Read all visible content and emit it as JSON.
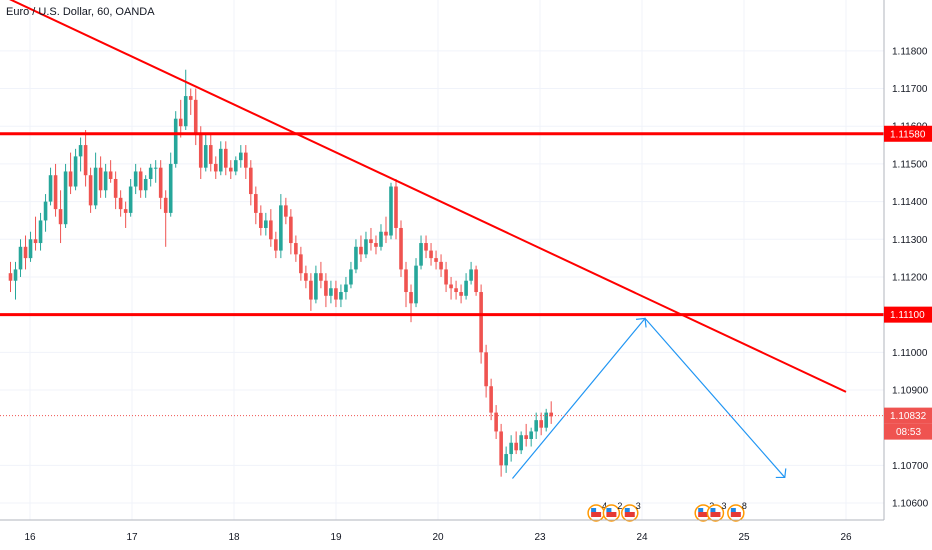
{
  "header": {
    "symbol_title": "Euro / U.S. Dollar, 60, OANDA"
  },
  "colors": {
    "background": "#ffffff",
    "grid": "#f0f3fa",
    "up": "#26a69a",
    "down": "#ef5350",
    "level_line": "#ff0000",
    "projection": "#2196f3",
    "axis_text": "#131722",
    "current_price_line": "#ef5350"
  },
  "chart_data": {
    "type": "candlestick",
    "symbol": "EURUSD",
    "timeframe": "60",
    "source": "OANDA",
    "title": "Euro / U.S. Dollar, 60, OANDA",
    "x_ticks": [
      "16",
      "17",
      "18",
      "19",
      "20",
      "23",
      "24",
      "25",
      "26"
    ],
    "x_tick_index": [
      0,
      1,
      2,
      3,
      4,
      5,
      6,
      7,
      8
    ],
    "y_ticks": [
      1.1066,
      1.1068,
      1.107,
      1.1082,
      1.1084,
      1.1086,
      1.1088,
      1.109,
      1.11,
      1.1104,
      1.1106,
      1.1108,
      1.1112,
      1.1114,
      1.1116,
      1.1118,
      1.113,
      1.114,
      1.115,
      1.116,
      1.117,
      1.118
    ],
    "y_tick_labels_shown": [
      "1.11800",
      "1.11700",
      "1.11600",
      "1.11500",
      "1.11400",
      "1.11300",
      "1.11200",
      "1.11000",
      "1.10900",
      "1.10700",
      "1.10600"
    ],
    "ylim": [
      1.10555,
      1.11935
    ],
    "horizontal_levels": [
      {
        "price": 1.1158,
        "label": "1.11580",
        "color": "#ff0000"
      },
      {
        "price": 1.111,
        "label": "1.11100",
        "color": "#ff0000"
      }
    ],
    "trendline": {
      "from": {
        "x": -0.3,
        "y": 1.1195
      },
      "to": {
        "x": 8.0,
        "y": 1.10895
      }
    },
    "projection_path": [
      {
        "x": 4.73,
        "y": 1.10665
      },
      {
        "x": 6.03,
        "y": 1.1109
      },
      {
        "x": 7.4,
        "y": 1.10668
      }
    ],
    "current_price": {
      "price": 1.10832,
      "label": "1.10832",
      "countdown": "08:53"
    },
    "events": [
      {
        "x": 5.55,
        "label": "4"
      },
      {
        "x": 5.7,
        "label": "2"
      },
      {
        "x": 5.88,
        "label": "3"
      },
      {
        "x": 6.6,
        "label": "2"
      },
      {
        "x": 6.72,
        "label": "3"
      },
      {
        "x": 6.92,
        "label": "8"
      }
    ],
    "candles": [
      [
        1.1121,
        1.1124,
        1.1116,
        1.1119
      ],
      [
        1.1119,
        1.1124,
        1.1114,
        1.1122
      ],
      [
        1.1122,
        1.113,
        1.112,
        1.1128
      ],
      [
        1.1128,
        1.1131,
        1.1122,
        1.1125
      ],
      [
        1.1125,
        1.1132,
        1.1124,
        1.113
      ],
      [
        1.113,
        1.1136,
        1.1127,
        1.1129
      ],
      [
        1.1129,
        1.1137,
        1.1127,
        1.1135
      ],
      [
        1.1135,
        1.1142,
        1.1132,
        1.114
      ],
      [
        1.114,
        1.1149,
        1.1139,
        1.1147
      ],
      [
        1.1147,
        1.115,
        1.1136,
        1.1138
      ],
      [
        1.1138,
        1.1143,
        1.1129,
        1.1134
      ],
      [
        1.1134,
        1.115,
        1.1133,
        1.1148
      ],
      [
        1.1148,
        1.1153,
        1.1142,
        1.1144
      ],
      [
        1.1144,
        1.1154,
        1.1143,
        1.1152
      ],
      [
        1.1152,
        1.1157,
        1.1148,
        1.1155
      ],
      [
        1.1155,
        1.1159,
        1.1144,
        1.1147
      ],
      [
        1.1147,
        1.1149,
        1.1137,
        1.1139
      ],
      [
        1.1139,
        1.1153,
        1.1138,
        1.1149
      ],
      [
        1.1149,
        1.1152,
        1.1141,
        1.1143
      ],
      [
        1.1143,
        1.115,
        1.1141,
        1.1148
      ],
      [
        1.1148,
        1.1151,
        1.1145,
        1.1146
      ],
      [
        1.1146,
        1.1148,
        1.1138,
        1.1141
      ],
      [
        1.1141,
        1.1143,
        1.1136,
        1.1138
      ],
      [
        1.1138,
        1.114,
        1.1133,
        1.1137
      ],
      [
        1.1137,
        1.1146,
        1.1136,
        1.1144
      ],
      [
        1.1144,
        1.115,
        1.1142,
        1.1148
      ],
      [
        1.1148,
        1.1149,
        1.1141,
        1.1143
      ],
      [
        1.1143,
        1.1147,
        1.1141,
        1.1146
      ],
      [
        1.1146,
        1.115,
        1.1144,
        1.1149
      ],
      [
        1.1149,
        1.1151,
        1.1145,
        1.1149
      ],
      [
        1.1149,
        1.1151,
        1.1138,
        1.1141
      ],
      [
        1.1141,
        1.1143,
        1.1128,
        1.1137
      ],
      [
        1.1137,
        1.1153,
        1.1136,
        1.115
      ],
      [
        1.115,
        1.1164,
        1.1149,
        1.1162
      ],
      [
        1.1162,
        1.1167,
        1.1157,
        1.116
      ],
      [
        1.116,
        1.1175,
        1.1159,
        1.1168
      ],
      [
        1.1168,
        1.117,
        1.1163,
        1.1167
      ],
      [
        1.1167,
        1.117,
        1.1155,
        1.1158
      ],
      [
        1.1158,
        1.116,
        1.1146,
        1.1149
      ],
      [
        1.1149,
        1.1158,
        1.1148,
        1.1155
      ],
      [
        1.1155,
        1.1158,
        1.1148,
        1.115
      ],
      [
        1.115,
        1.1152,
        1.1146,
        1.1148
      ],
      [
        1.1148,
        1.1156,
        1.1147,
        1.1154
      ],
      [
        1.1154,
        1.1156,
        1.1147,
        1.1149
      ],
      [
        1.1149,
        1.1151,
        1.1146,
        1.1148
      ],
      [
        1.1148,
        1.1152,
        1.1147,
        1.1151
      ],
      [
        1.1151,
        1.1155,
        1.1149,
        1.1153
      ],
      [
        1.1153,
        1.1155,
        1.1146,
        1.1149
      ],
      [
        1.1149,
        1.1151,
        1.1139,
        1.1142
      ],
      [
        1.1142,
        1.1144,
        1.1134,
        1.1137
      ],
      [
        1.1137,
        1.1139,
        1.1131,
        1.1133
      ],
      [
        1.1133,
        1.1137,
        1.1131,
        1.1135
      ],
      [
        1.1135,
        1.1138,
        1.1128,
        1.113
      ],
      [
        1.113,
        1.1132,
        1.1125,
        1.1127
      ],
      [
        1.1127,
        1.1142,
        1.1125,
        1.1139
      ],
      [
        1.1139,
        1.1141,
        1.1134,
        1.1136
      ],
      [
        1.1136,
        1.1138,
        1.1126,
        1.1129
      ],
      [
        1.1129,
        1.1131,
        1.1124,
        1.1126
      ],
      [
        1.1126,
        1.1128,
        1.1119,
        1.1121
      ],
      [
        1.1121,
        1.1123,
        1.1117,
        1.1119
      ],
      [
        1.1119,
        1.1121,
        1.1111,
        1.1114
      ],
      [
        1.1114,
        1.1123,
        1.1113,
        1.1121
      ],
      [
        1.1121,
        1.1124,
        1.1117,
        1.1119
      ],
      [
        1.1119,
        1.1121,
        1.1112,
        1.1115
      ],
      [
        1.1115,
        1.1119,
        1.1113,
        1.1117
      ],
      [
        1.1117,
        1.1119,
        1.1112,
        1.1114
      ],
      [
        1.1114,
        1.1118,
        1.1112,
        1.1116
      ],
      [
        1.1116,
        1.112,
        1.1114,
        1.1118
      ],
      [
        1.1118,
        1.1124,
        1.1117,
        1.1122
      ],
      [
        1.1122,
        1.113,
        1.1121,
        1.1128
      ],
      [
        1.1128,
        1.1131,
        1.1124,
        1.1126
      ],
      [
        1.1126,
        1.1132,
        1.1125,
        1.113
      ],
      [
        1.113,
        1.1133,
        1.1127,
        1.1129
      ],
      [
        1.1129,
        1.1131,
        1.1126,
        1.1128
      ],
      [
        1.1128,
        1.1134,
        1.1127,
        1.1132
      ],
      [
        1.1132,
        1.1136,
        1.1129,
        1.1131
      ],
      [
        1.1131,
        1.1145,
        1.113,
        1.1144
      ],
      [
        1.1144,
        1.1146,
        1.113,
        1.1133
      ],
      [
        1.1133,
        1.1135,
        1.112,
        1.1122
      ],
      [
        1.1122,
        1.1124,
        1.1112,
        1.1116
      ],
      [
        1.1116,
        1.1118,
        1.1108,
        1.1113
      ],
      [
        1.1113,
        1.1125,
        1.1112,
        1.1123
      ],
      [
        1.1123,
        1.1131,
        1.1122,
        1.1129
      ],
      [
        1.1129,
        1.1131,
        1.1125,
        1.1127
      ],
      [
        1.1127,
        1.1129,
        1.1123,
        1.1125
      ],
      [
        1.1125,
        1.1127,
        1.1122,
        1.1124
      ],
      [
        1.1124,
        1.1126,
        1.112,
        1.1122
      ],
      [
        1.1122,
        1.1124,
        1.1116,
        1.1118
      ],
      [
        1.1118,
        1.112,
        1.1114,
        1.1117
      ],
      [
        1.1117,
        1.1119,
        1.1114,
        1.1116
      ],
      [
        1.1116,
        1.1118,
        1.1113,
        1.1115
      ],
      [
        1.1115,
        1.1121,
        1.1114,
        1.1119
      ],
      [
        1.1119,
        1.1124,
        1.1118,
        1.1122
      ],
      [
        1.1122,
        1.1123,
        1.1115,
        1.1116
      ],
      [
        1.1116,
        1.1118,
        1.1097,
        1.11
      ],
      [
        1.11,
        1.1102,
        1.1088,
        1.1091
      ],
      [
        1.1091,
        1.1093,
        1.1082,
        1.1084
      ],
      [
        1.1084,
        1.1086,
        1.1077,
        1.1079
      ],
      [
        1.1079,
        1.1081,
        1.1067,
        1.107
      ],
      [
        1.107,
        1.1075,
        1.1068,
        1.1073
      ],
      [
        1.1073,
        1.1078,
        1.1071,
        1.1076
      ],
      [
        1.1076,
        1.1079,
        1.1073,
        1.1074
      ],
      [
        1.1074,
        1.1079,
        1.1073,
        1.1078
      ],
      [
        1.1078,
        1.1081,
        1.1075,
        1.1077
      ],
      [
        1.1077,
        1.108,
        1.1075,
        1.1079
      ],
      [
        1.1079,
        1.1084,
        1.1077,
        1.1082
      ],
      [
        1.1082,
        1.1084,
        1.1078,
        1.108
      ],
      [
        1.108,
        1.1085,
        1.1079,
        1.1084
      ],
      [
        1.1084,
        1.1087,
        1.1081,
        1.1083
      ]
    ]
  }
}
